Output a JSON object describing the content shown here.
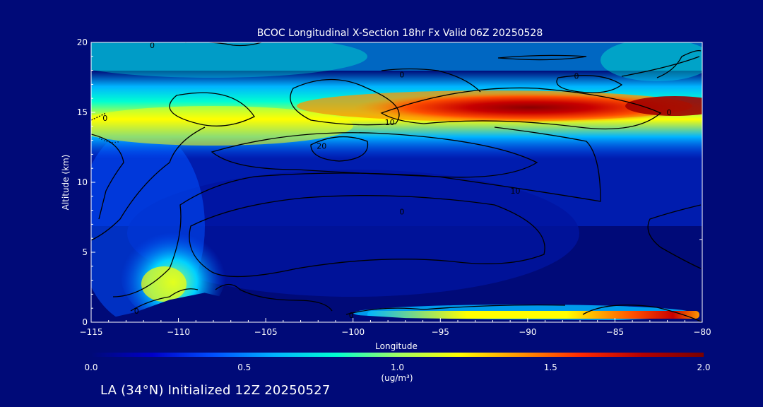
{
  "chart_data": {
    "type": "heatmap",
    "title": "BCOC Longitudinal X-Section 18hr  Fx Valid 06Z 20250528",
    "xlabel": "Longitude",
    "ylabel": "Altitude (km)",
    "xlim": [
      -115,
      -80
    ],
    "ylim": [
      0,
      20
    ],
    "xticks": [
      -115,
      -110,
      -105,
      -100,
      -95,
      -90,
      -85,
      -80
    ],
    "yticks": [
      0,
      5,
      10,
      15,
      20
    ],
    "colorbar": {
      "range": [
        0.0,
        2.0
      ],
      "ticks": [
        "0.0",
        "0.5",
        "1.0",
        "1.5",
        "2.0"
      ],
      "label": "(ug/m³)",
      "colors": [
        "#000a78",
        "#0000c8",
        "#0050ff",
        "#00b4ff",
        "#00ffd2",
        "#a0ff64",
        "#ffff00",
        "#ff9600",
        "#ff2800",
        "#b40000",
        "#780000"
      ]
    },
    "color_field_features": [
      {
        "feature": "upper-layer",
        "longitude_range": [
          -115,
          -80
        ],
        "altitude_km": 15,
        "peak_value": 2.0,
        "peak_longitude": -90
      },
      {
        "feature": "surface-layer",
        "longitude_range": [
          -100,
          -80
        ],
        "altitude_km": 0.4,
        "peak_value": 2.0,
        "peak_longitude": -83
      },
      {
        "feature": "western-plume",
        "longitude_range": [
          -112,
          -107
        ],
        "altitude_km": 2.5,
        "peak_value": 1.2,
        "peak_longitude": -110
      }
    ],
    "contour_labels": [
      {
        "text": "0",
        "lon": -111.5,
        "alt": 19.8
      },
      {
        "text": "0",
        "lon": -97.2,
        "alt": 17.7
      },
      {
        "text": "0",
        "lon": -87.2,
        "alt": 17.6
      },
      {
        "text": "0",
        "lon": -114.2,
        "alt": 14.6
      },
      {
        "text": "10",
        "lon": -97.9,
        "alt": 14.3
      },
      {
        "text": "0",
        "lon": -81.9,
        "alt": 15.0
      },
      {
        "text": "20",
        "lon": -101.8,
        "alt": 12.6
      },
      {
        "text": "10",
        "lon": -90.7,
        "alt": 9.4
      },
      {
        "text": "0",
        "lon": -97.2,
        "alt": 7.9
      },
      {
        "text": "0",
        "lon": -112.4,
        "alt": 0.8
      },
      {
        "text": "0",
        "lon": -100.1,
        "alt": 0.5
      }
    ],
    "terrain_km": [
      [
        -115,
        0.0
      ],
      [
        -112.5,
        0.7
      ],
      [
        -110.5,
        1.6
      ],
      [
        -108.5,
        2.1
      ],
      [
        -106.5,
        1.5
      ],
      [
        -104,
        1.0
      ],
      [
        -101,
        0.6
      ],
      [
        -97,
        0.3
      ],
      [
        -92,
        0.2
      ],
      [
        -85,
        0.15
      ],
      [
        -80,
        0.1
      ]
    ]
  },
  "footer": {
    "text": "LA (34°N) Initialized 12Z 20250527"
  }
}
